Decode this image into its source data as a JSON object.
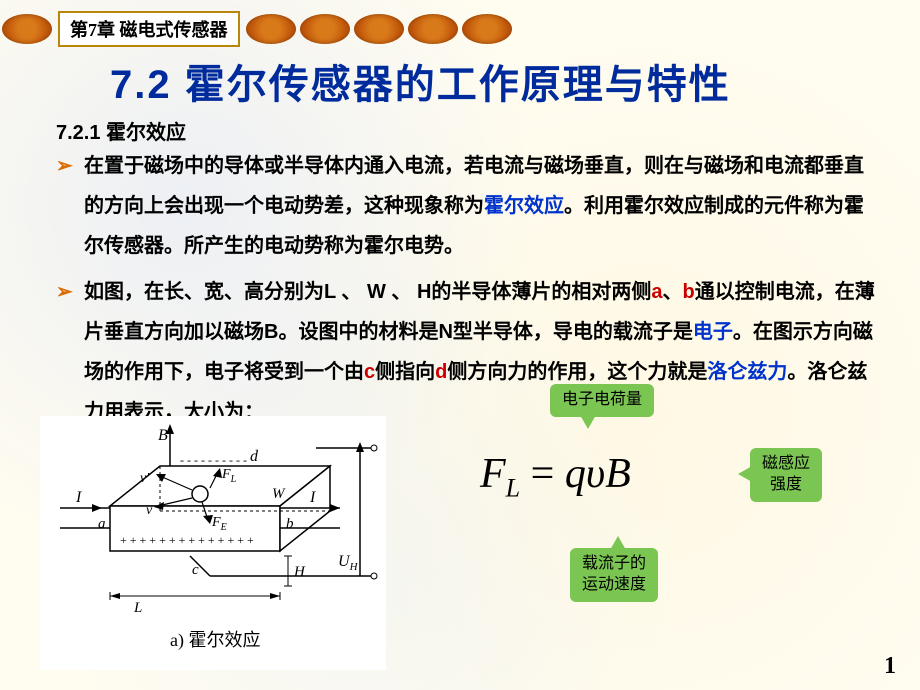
{
  "chapter_label": "第7章 磁电式传感器",
  "title": "7.2  霍尔传感器的工作原理与特性",
  "subtitle": "7.2.1  霍尔效应",
  "para1": {
    "t1": "在置于磁场中的导体或半导体内通入电流，若电流与磁场垂直，则在与磁场和电流都垂直的方向上会出现一个电动势差，这种现象称为",
    "hall": "霍尔效应",
    "t2": "。利用霍尔效应制成的元件称为霍尔传感器。所产生的电动势称为霍尔电势。"
  },
  "para2": {
    "t1": "如图，在长、宽、高分别为L 、 W 、 H的半导体薄片的相对两侧",
    "a": "a",
    "sep1": "、",
    "b": "b",
    "t2": "通以控制电流，在薄片垂直方向加以磁场B。设图中的材料是N型半导体，导电的载流子是",
    "electron": "电子",
    "t3": "。在图示方向磁场的作用下，电子将受到一个由",
    "c": "c",
    "t4": "侧指向",
    "d": "d",
    "t5": "侧方向力的作用，这个力就是",
    "lorentz": "洛仑兹力",
    "t6": "。洛仑兹力用表示，大小为："
  },
  "diagram": {
    "caption": "a) 霍尔效应",
    "labels": {
      "B": "B",
      "I_left": "I",
      "I_right": "I",
      "a": "a",
      "b": "b",
      "c": "c",
      "d": "d",
      "v": "v",
      "vp": "v'",
      "FL": "F",
      "FLsub": "L",
      "FE": "F",
      "FEsub": "E",
      "UH": "U",
      "UHsub": "H",
      "L": "L",
      "W": "W",
      "H": "H"
    },
    "colors": {
      "stroke": "#000000",
      "bg": "#ffffff"
    }
  },
  "formula": {
    "FL": "F",
    "Lsub": "L",
    "eq": " = ",
    "q": "q",
    "v": "υ",
    "B": "B"
  },
  "callouts": {
    "charge": "电子电荷量",
    "flux": "磁感应\n强度",
    "velocity": "载流子的\n运动速度"
  },
  "callout_color": "#7bc653",
  "page_number": "1"
}
